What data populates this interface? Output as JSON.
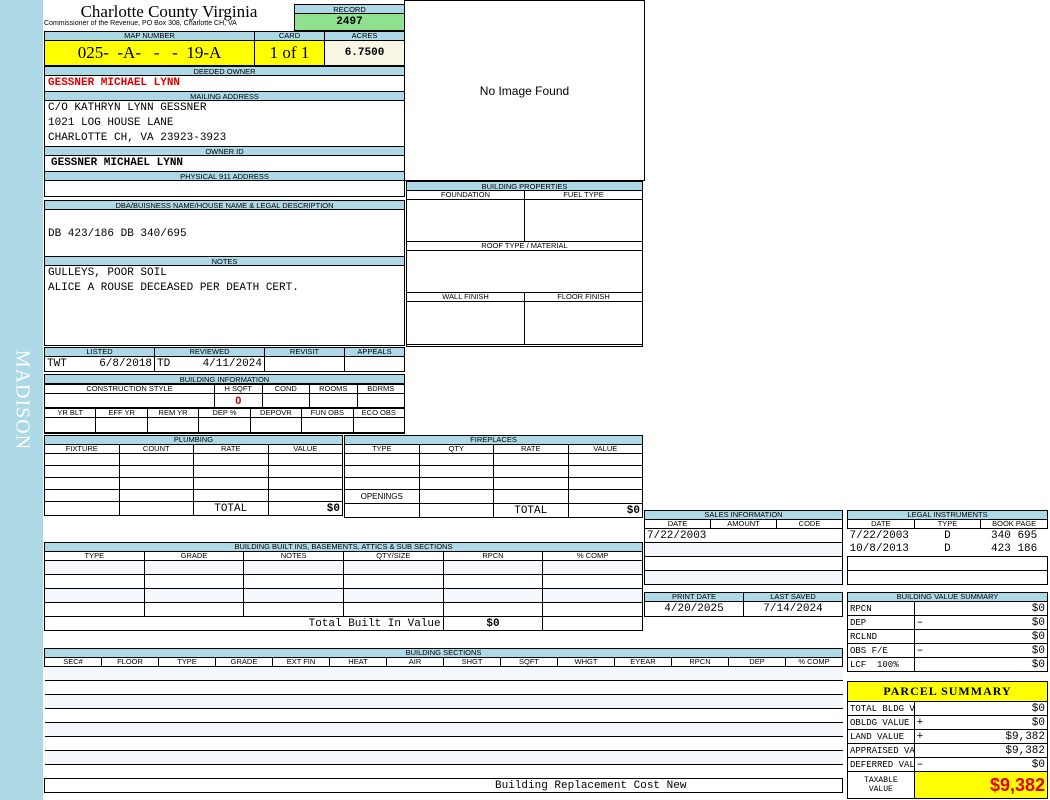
{
  "sidebar": {
    "label": "MADISON",
    "color": "#add8e6"
  },
  "header": {
    "title": "Charlotte County Virginia",
    "subtitle": "Commissioner of the Revenue, PO Box 308, Charlotte CH, VA",
    "record_label": "RECORD",
    "record": "2497"
  },
  "image": {
    "text": "No Image Found"
  },
  "parcel": {
    "map_label": "MAP NUMBER",
    "map": "025-  -A-   -   -  19-A",
    "card_label": "CARD",
    "card": "1 of 1",
    "acres_label": "ACRES",
    "acres": "6.7500"
  },
  "owner": {
    "deeded_label": "DEEDED OWNER",
    "deeded": "GESSNER MICHAEL LYNN",
    "mailing_label": "MAILING ADDRESS",
    "mailing": [
      "C/O KATHRYN LYNN GESSNER",
      "1021 LOG HOUSE LANE",
      "CHARLOTTE CH, VA 23923-3923"
    ],
    "id_label": "OWNER ID",
    "id": "GESSNER MICHAEL LYNN",
    "physical_label": "PHYSICAL 911 ADDRESS",
    "physical": ""
  },
  "legal": {
    "label": "DBA/BUISNESS NAME/HOUSE NAME & LEGAL DESCRIPTION",
    "text": "DB 423/186 DB 340/695"
  },
  "notes": {
    "label": "NOTES",
    "lines": [
      "GULLEYS, POOR SOIL",
      "ALICE A ROUSE DECEASED PER DEATH CERT."
    ]
  },
  "listing": {
    "headers": [
      "LISTED",
      "REVIEWED",
      "REVISIT",
      "APPEALS"
    ],
    "listed_by": "TWT",
    "listed_date": "6/8/2018",
    "reviewed_by": "TD",
    "reviewed_date": "4/11/2024"
  },
  "building_info": {
    "label": "BUILDING INFORMATION",
    "row1": [
      "CONSTRUCTION STYLE",
      "H SQFT",
      "COND",
      "ROOMS",
      "BDRMS"
    ],
    "hsqft": "0",
    "row2": [
      "YR BLT",
      "EFF YR",
      "REM YR",
      "DEP %",
      "DEPOVR",
      "FUN OBS",
      "ECO OBS"
    ]
  },
  "building_properties": {
    "label": "BUILDING PROPERTIES",
    "foundation": "FOUNDATION",
    "fuel": "FUEL TYPE",
    "roof": "ROOF TYPE / MATERIAL",
    "wall": "WALL FINISH",
    "floor": "FLOOR FINISH"
  },
  "plumbing": {
    "label": "PLUMBING",
    "columns": [
      "FIXTURE",
      "COUNT",
      "RATE",
      "VALUE"
    ],
    "total_label": "TOTAL",
    "total": "$0"
  },
  "fireplaces": {
    "label": "FIREPLACES",
    "columns": [
      "TYPE",
      "QTY",
      "RATE",
      "VALUE"
    ],
    "openings_label": "OPENINGS",
    "total_label": "TOTAL",
    "total": "$0"
  },
  "built_ins": {
    "label": "BUILDING BUILT INS, BASEMENTS, ATTICS & SUB SECTIONS",
    "columns": [
      "TYPE",
      "GRADE",
      "NOTES",
      "QTY/SIZE",
      "RPCN",
      "% COMP"
    ],
    "total_label": "Total Built In Value",
    "total": "$0"
  },
  "sections": {
    "label": "BUILDING SECTIONS",
    "columns": [
      "SEC#",
      "FLOOR",
      "TYPE",
      "GRADE",
      "EXT FIN",
      "HEAT",
      "AIR",
      "SHGT",
      "SQFT",
      "WHGT",
      "EYEAR",
      "RPCN",
      "DEP",
      "% COMP"
    ],
    "footer": "Building Replacement Cost New"
  },
  "sales": {
    "label": "SALES INFORMATION",
    "columns": [
      "DATE",
      "AMOUNT",
      "CODE"
    ],
    "rows": [
      [
        "7/22/2003",
        "",
        ""
      ]
    ]
  },
  "dates": {
    "print_label": "PRINT DATE",
    "print": "4/20/2025",
    "saved_label": "LAST SAVED",
    "saved": "7/14/2024"
  },
  "instruments": {
    "label": "LEGAL INSTRUMENTS",
    "columns": [
      "DATE",
      "TYPE",
      "BOOK PAGE"
    ],
    "rows": [
      [
        "7/22/2003",
        "D",
        "340 695"
      ],
      [
        "10/8/2013",
        "D",
        "423 186"
      ]
    ]
  },
  "value_summary": {
    "label": "BUILDING VALUE SUMMARY",
    "rows": [
      [
        "RPCN",
        "",
        "$0"
      ],
      [
        "DEP",
        "–",
        "$0"
      ],
      [
        "RCLND",
        "",
        "$0"
      ],
      [
        "OBS F/E",
        "–",
        "$0"
      ],
      [
        "LCF  100%",
        "",
        "$0"
      ]
    ]
  },
  "parcel_summary": {
    "label": "PARCEL SUMMARY",
    "rows": [
      [
        "TOTAL BLDG VALUE",
        "",
        "$0"
      ],
      [
        "OBLDG VALUE",
        "+",
        "$0"
      ],
      [
        "LAND VALUE",
        "+",
        "$9,382"
      ],
      [
        "APPRAISED VALUE",
        "",
        "$9,382"
      ],
      [
        "DEFERRED VALUE",
        "–",
        "$0"
      ]
    ],
    "taxable_label": "TAXABLE VALUE",
    "taxable": "$9,382",
    "highlight": "#ffff00",
    "total_color": "#e00000"
  }
}
